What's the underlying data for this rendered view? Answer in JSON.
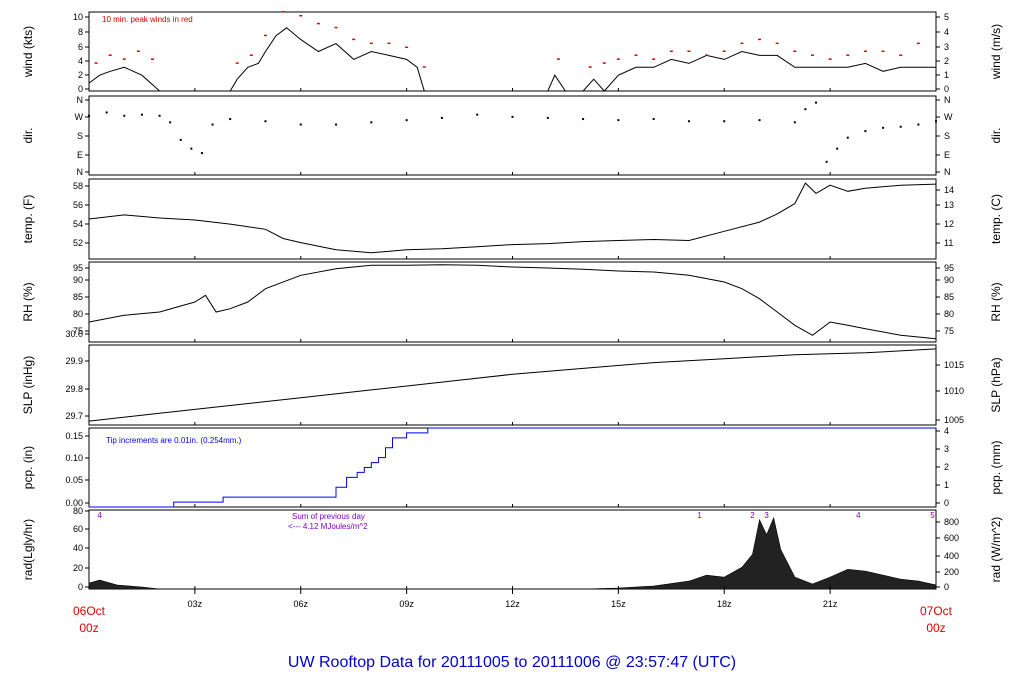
{
  "title": "UW Rooftop Data for 20111005  to  20111006 @ 23:57:47  (UTC)",
  "colors": {
    "trace": "#000000",
    "peak": "#e00000",
    "pcp": "#0000ee",
    "solar": "#8000c0",
    "title": "#0000cc"
  },
  "chart_data": [
    {
      "type": "line",
      "id": "wind",
      "ylabel_left": "wind (kts)",
      "ylabel_right": "wind (m/s)",
      "yticks_left": [
        "0",
        "2",
        "4",
        "6",
        "8",
        "10"
      ],
      "yticks_right": [
        "0",
        "1",
        "2",
        "3",
        "4",
        "5"
      ],
      "ylim": [
        0,
        10
      ],
      "annotation": "10 min. peak winds in red",
      "series": [
        {
          "x": [
            0,
            0.3,
            0.6,
            1,
            1.5,
            2,
            2.5,
            3,
            3.5,
            4,
            4.2,
            4.5,
            4.8,
            5,
            5.3,
            5.6,
            6,
            6.5,
            7,
            7.5,
            8,
            8.5,
            9,
            9.3,
            9.5,
            10,
            11,
            12,
            13,
            13.2,
            13.5,
            14,
            14.3,
            14.6,
            15,
            15.5,
            16,
            16.5,
            17,
            17.5,
            18,
            18.5,
            19,
            19.5,
            20,
            20.5,
            21,
            21.5,
            22,
            22.5,
            23,
            23.5,
            24
          ],
          "y": [
            1,
            2,
            2.5,
            3,
            2,
            0,
            0,
            0,
            0,
            0,
            1.5,
            3,
            3.5,
            5,
            7,
            8,
            6.5,
            5,
            6,
            4,
            5,
            4.5,
            4,
            3,
            0,
            0,
            0,
            0,
            0,
            2,
            0,
            0,
            1.5,
            0,
            2,
            3,
            3,
            4,
            3.5,
            4.5,
            4,
            5,
            4.5,
            4.5,
            3,
            3,
            3,
            3,
            3.5,
            2.5,
            3,
            3,
            3
          ]
        }
      ],
      "peaks": {
        "x": [
          0.2,
          0.6,
          1,
          1.4,
          1.8,
          4.2,
          4.6,
          5,
          5.5,
          6,
          6.5,
          7,
          7.5,
          8,
          8.5,
          9,
          9.5,
          13.3,
          14.2,
          14.6,
          15,
          15.5,
          16,
          16.5,
          17,
          17.5,
          18,
          18.5,
          19,
          19.5,
          20,
          20.5,
          21,
          21.5,
          22,
          22.5,
          23,
          23.5
        ],
        "y": [
          3.5,
          4.5,
          4,
          5,
          4,
          3.5,
          4.5,
          7,
          10,
          9.5,
          8.5,
          8,
          6.5,
          6,
          6,
          5.5,
          3,
          4,
          3,
          3.5,
          4,
          4.5,
          4,
          5,
          5,
          4.5,
          5,
          6,
          6.5,
          6,
          5,
          4.5,
          4,
          4.5,
          5,
          5,
          4.5,
          6
        ]
      }
    },
    {
      "type": "scatter",
      "id": "dir",
      "ylabel_left": "dir.",
      "ylabel_right": "dir.",
      "yticks_left": [
        "N",
        "E",
        "S",
        "W",
        "N"
      ],
      "yticks_right": [
        "N",
        "E",
        "S",
        "W",
        "N"
      ],
      "ylim": [
        0,
        360
      ],
      "series": [
        {
          "x": [
            0,
            0.5,
            1,
            1.5,
            2,
            2.3,
            2.6,
            2.9,
            3.2,
            3.5,
            4,
            5,
            6,
            7,
            8,
            9,
            10,
            11,
            12,
            13,
            14,
            15,
            16,
            17,
            18,
            19,
            20,
            20.3,
            20.6,
            20.9,
            21.2,
            21.5,
            22,
            22.5,
            23,
            23.5,
            24
          ],
          "y": [
            270,
            285,
            270,
            275,
            270,
            240,
            160,
            120,
            100,
            230,
            255,
            245,
            230,
            230,
            240,
            250,
            260,
            275,
            265,
            260,
            255,
            250,
            255,
            245,
            245,
            250,
            240,
            300,
            330,
            60,
            120,
            170,
            200,
            215,
            220,
            230,
            245
          ]
        }
      ]
    },
    {
      "type": "line",
      "id": "temp",
      "ylabel_left": "temp. (F)",
      "ylabel_right": "temp. (C)",
      "yticks_left": [
        "52",
        "54",
        "56",
        "58"
      ],
      "yticks_right": [
        "11",
        "12",
        "13",
        "14"
      ],
      "ylim": [
        50.6,
        58.4
      ],
      "series": [
        {
          "x": [
            0,
            1,
            2,
            3,
            4,
            5,
            5.5,
            6,
            7,
            8,
            9,
            10,
            11,
            12,
            13,
            14,
            15,
            16,
            17,
            18,
            19,
            19.5,
            20,
            20.3,
            20.6,
            21,
            21.5,
            22,
            23,
            24
          ],
          "y": [
            54.5,
            54.9,
            54.6,
            54.4,
            54,
            53.5,
            52.6,
            52.2,
            51.5,
            51.2,
            51.5,
            51.6,
            51.8,
            52,
            52.1,
            52.3,
            52.4,
            52.5,
            52.4,
            53.3,
            54.2,
            55,
            56,
            58,
            57,
            57.8,
            57.2,
            57.5,
            57.8,
            57.9
          ]
        }
      ]
    },
    {
      "type": "line",
      "id": "rh",
      "ylabel_left": "RH (%)",
      "ylabel_right": "RH (%)",
      "yticks_left": [
        "75",
        "80",
        "85",
        "90",
        "95"
      ],
      "yticks_right": [
        "75",
        "80",
        "85",
        "90",
        "95"
      ],
      "ylim": [
        73,
        97
      ],
      "series": [
        {
          "x": [
            0,
            1,
            2,
            3,
            3.3,
            3.6,
            4,
            4.5,
            5,
            6,
            7,
            8,
            9,
            10,
            11,
            12,
            13,
            14,
            15,
            16,
            17,
            18,
            18.5,
            19,
            19.5,
            20,
            20.5,
            21,
            21.5,
            22,
            23,
            24
          ],
          "y": [
            79,
            81,
            82,
            85,
            87,
            82,
            83,
            85,
            89,
            93,
            95,
            96,
            96,
            96.2,
            96,
            95.5,
            95.2,
            94.8,
            94.3,
            94,
            93,
            91,
            89,
            86,
            82,
            78,
            75,
            79,
            78,
            77,
            75,
            74
          ]
        }
      ]
    },
    {
      "type": "line",
      "id": "slp",
      "ylabel_left": "SLP (inHg)",
      "ylabel_right": "SLP (hPa)",
      "yticks_left": [
        "29.7",
        "29.8",
        "29.9",
        "30.0"
      ],
      "yticks_right": [
        "1005",
        "1010",
        "1015"
      ],
      "ylim": [
        29.67,
        30.08
      ],
      "series": [
        {
          "x": [
            0,
            2,
            4,
            6,
            8,
            10,
            12,
            14,
            16,
            18,
            20,
            22,
            24
          ],
          "y": [
            29.69,
            29.73,
            29.77,
            29.81,
            29.85,
            29.89,
            29.93,
            29.96,
            29.99,
            30.01,
            30.03,
            30.04,
            30.06
          ]
        }
      ]
    },
    {
      "type": "line",
      "id": "pcp",
      "ylabel_left": "pcp. (in)",
      "ylabel_right": "pcp. (mm)",
      "yticks_left": [
        "0.00",
        "0.05",
        "0.10",
        "0.15"
      ],
      "yticks_right": [
        "0",
        "1",
        "2",
        "3",
        "4"
      ],
      "ylim": [
        0,
        0.16
      ],
      "annotation": "Tip increments are 0.01in. (0.254mm.)",
      "series": [
        {
          "x": [
            0,
            2.4,
            2.4,
            3.8,
            3.8,
            7,
            7,
            7.3,
            7.3,
            7.6,
            7.6,
            7.8,
            7.8,
            8,
            8,
            8.2,
            8.2,
            8.4,
            8.4,
            8.6,
            8.6,
            9,
            9,
            9.6,
            9.6,
            24
          ],
          "y": [
            0,
            0,
            0.01,
            0.01,
            0.02,
            0.02,
            0.04,
            0.04,
            0.06,
            0.06,
            0.07,
            0.07,
            0.08,
            0.08,
            0.09,
            0.09,
            0.1,
            0.1,
            0.12,
            0.12,
            0.14,
            0.14,
            0.15,
            0.15,
            0.16,
            0.16
          ]
        }
      ]
    },
    {
      "type": "area",
      "id": "rad",
      "ylabel_left": "rad(Lgly/hr)",
      "ylabel_right": "rad (W/m^2)",
      "yticks_left": [
        "0",
        "20",
        "40",
        "60",
        "80"
      ],
      "yticks_right": [
        "0",
        "200",
        "400",
        "600",
        "800"
      ],
      "ylim": [
        0,
        80
      ],
      "annotation_1": "Sum of previous day",
      "annotation_2": "<--- 4.12 MJoules/m^2",
      "marks": [
        {
          "x": 0.3,
          "label": "4"
        },
        {
          "x": 17.3,
          "label": "1"
        },
        {
          "x": 18.8,
          "label": "2"
        },
        {
          "x": 19.2,
          "label": "3"
        },
        {
          "x": 21.8,
          "label": "4"
        },
        {
          "x": 23.9,
          "label": "5"
        }
      ],
      "series": [
        {
          "x": [
            0,
            0.3,
            0.8,
            1.5,
            2,
            14,
            15,
            16,
            17,
            17.5,
            18,
            18.5,
            18.8,
            19,
            19.2,
            19.4,
            19.6,
            20,
            20.5,
            21,
            21.5,
            22,
            22.5,
            23,
            23.5,
            24
          ],
          "y": [
            6,
            9,
            4,
            2,
            0,
            0,
            1,
            3,
            8,
            14,
            12,
            22,
            35,
            70,
            55,
            72,
            40,
            12,
            5,
            12,
            20,
            18,
            14,
            10,
            8,
            4
          ]
        }
      ]
    }
  ],
  "x_axis": {
    "ticks": [
      {
        "x": 0,
        "label": "06Oct"
      },
      {
        "x": 3,
        "label": "03z"
      },
      {
        "x": 6,
        "label": "06z"
      },
      {
        "x": 9,
        "label": "09z"
      },
      {
        "x": 12,
        "label": "12z"
      },
      {
        "x": 15,
        "label": "15z"
      },
      {
        "x": 18,
        "label": "18z"
      },
      {
        "x": 21,
        "label": "21z"
      },
      {
        "x": 24,
        "label": "07Oct"
      }
    ],
    "start_label_1": "06Oct",
    "start_label_2": "00z",
    "end_label_1": "07Oct",
    "end_label_2": "00z"
  }
}
